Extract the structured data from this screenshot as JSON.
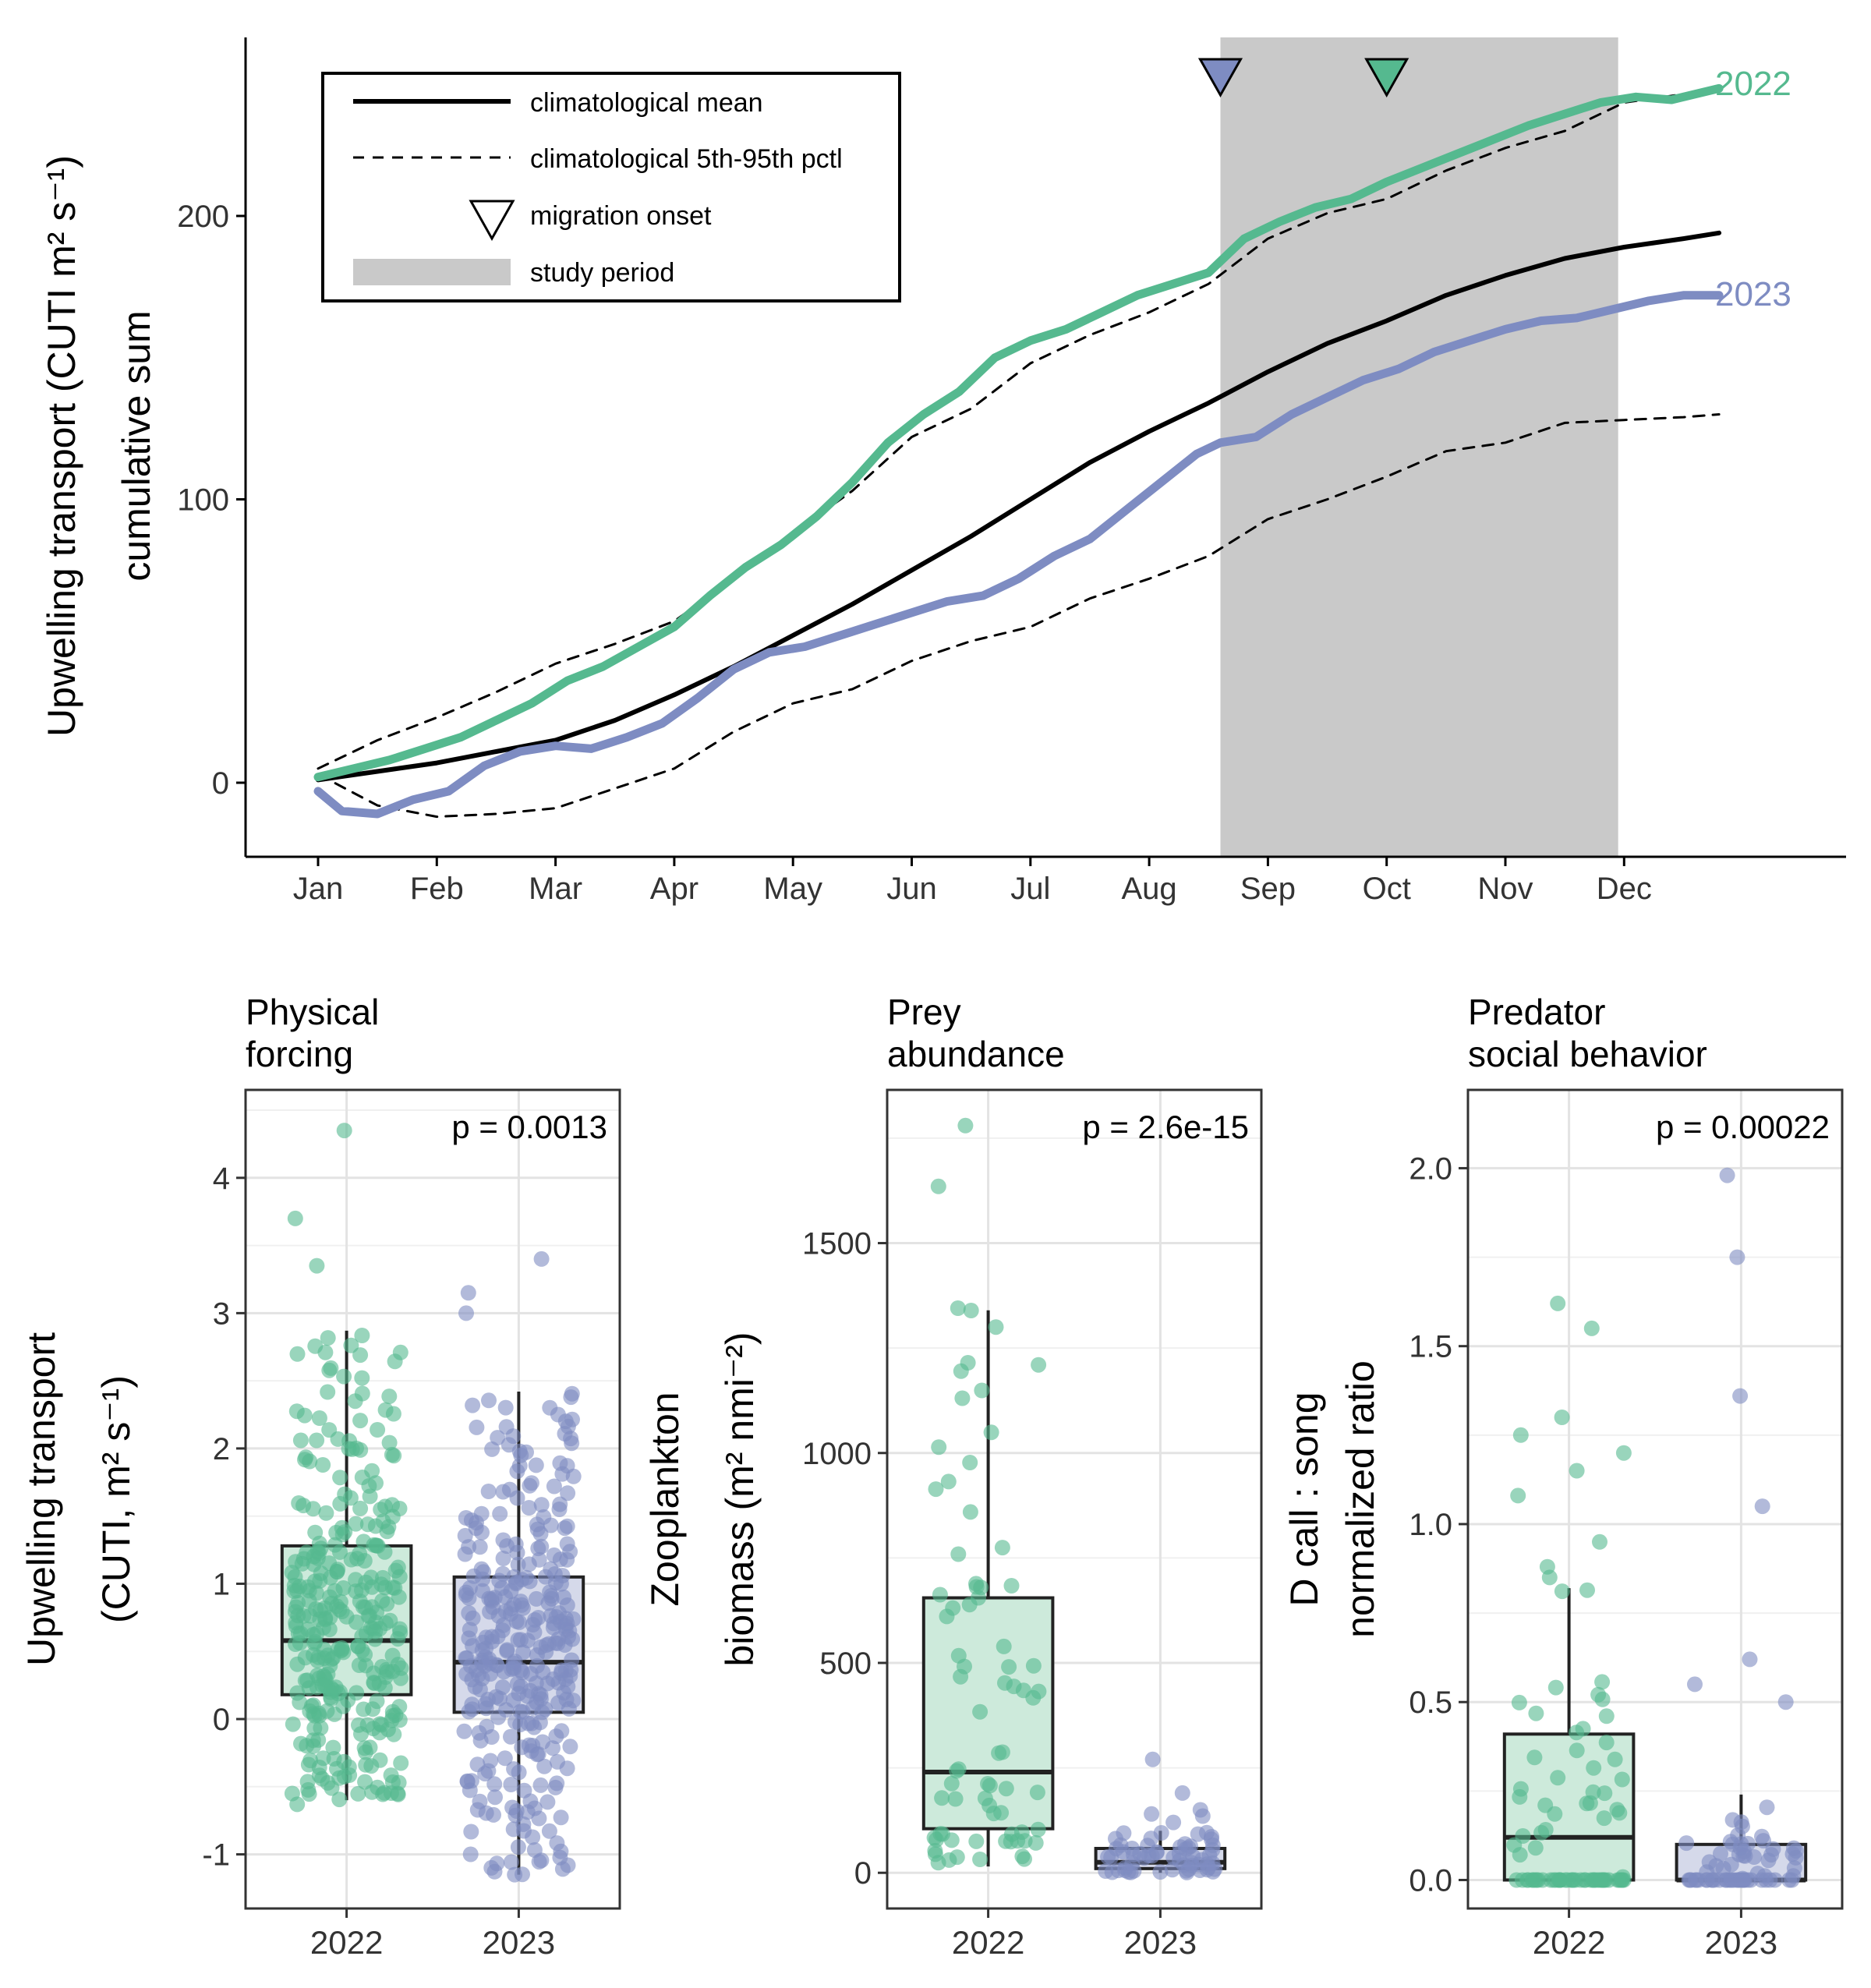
{
  "colors": {
    "y2022": "#55b98f",
    "y2023": "#7e8cc2",
    "mean": "#000000",
    "shade": "#c9c9c9",
    "fill2022": "#cdeadb",
    "fill2023": "#d5d9ea"
  },
  "top": {
    "ylabel1": "Upwelling transport (CUTI m² s⁻¹)",
    "ylabel2": "cumulative sum",
    "yticks": [
      0,
      100,
      200
    ],
    "months": [
      "Jan",
      "Feb",
      "Mar",
      "Apr",
      "May",
      "Jun",
      "Jul",
      "Aug",
      "Sep",
      "Oct",
      "Nov",
      "Dec"
    ],
    "legend": {
      "mean": "climatological mean",
      "pctl": "climatological 5th-95th pctl",
      "onset": "migration onset",
      "study": "study period"
    },
    "label2022": "2022",
    "label2023": "2023"
  },
  "chart_data": [
    {
      "type": "line",
      "x_unit": "month (1 = Jan 1, 13 = Jan 1 next year)",
      "ylim": [
        -25,
        262
      ],
      "study_period": [
        8.6,
        11.95
      ],
      "migration_onset": {
        "2022": 10.0,
        "2023": 8.6
      },
      "series": [
        {
          "name": "2022",
          "x": [
            1,
            1.3,
            1.6,
            1.9,
            2.2,
            2.5,
            2.8,
            3.1,
            3.4,
            3.7,
            4,
            4.3,
            4.6,
            4.9,
            5.2,
            5.5,
            5.8,
            6.1,
            6.4,
            6.7,
            7,
            7.3,
            7.6,
            7.9,
            8.2,
            8.5,
            8.8,
            9.1,
            9.4,
            9.7,
            10,
            10.3,
            10.6,
            10.9,
            11.2,
            11.5,
            11.8,
            12.1,
            12.4,
            12.8
          ],
          "y": [
            2,
            5,
            8,
            12,
            16,
            22,
            28,
            36,
            41,
            48,
            55,
            66,
            76,
            84,
            94,
            106,
            120,
            130,
            138,
            150,
            156,
            160,
            166,
            172,
            176,
            180,
            192,
            198,
            203,
            206,
            212,
            217,
            222,
            227,
            232,
            236,
            240,
            242,
            241,
            245
          ]
        },
        {
          "name": "2023",
          "x": [
            1,
            1.2,
            1.5,
            1.8,
            2.1,
            2.4,
            2.7,
            3.0,
            3.3,
            3.6,
            3.9,
            4.2,
            4.5,
            4.8,
            5.1,
            5.4,
            5.7,
            6.0,
            6.3,
            6.6,
            6.9,
            7.2,
            7.5,
            7.8,
            8.1,
            8.4,
            8.6,
            8.9,
            9.2,
            9.5,
            9.8,
            10.1,
            10.4,
            10.7,
            11,
            11.3,
            11.6,
            11.9,
            12.2,
            12.5,
            12.8
          ],
          "y": [
            -3,
            -10,
            -11,
            -6,
            -3,
            6,
            11,
            13,
            12,
            16,
            21,
            30,
            40,
            46,
            48,
            52,
            56,
            60,
            64,
            66,
            72,
            80,
            86,
            96,
            106,
            116,
            120,
            122,
            130,
            136,
            142,
            146,
            152,
            156,
            160,
            163,
            164,
            167,
            170,
            172,
            172
          ]
        },
        {
          "name": "climatological mean",
          "x": [
            1,
            1.5,
            2,
            2.5,
            3,
            3.5,
            4,
            4.5,
            5,
            5.5,
            6,
            6.5,
            7,
            7.5,
            8,
            8.5,
            9,
            9.5,
            10,
            10.5,
            11,
            11.5,
            12,
            12.5,
            12.8
          ],
          "y": [
            1,
            4,
            7,
            11,
            15,
            22,
            31,
            41,
            52,
            63,
            75,
            87,
            100,
            113,
            124,
            134,
            145,
            155,
            163,
            172,
            179,
            185,
            189,
            192,
            194
          ]
        },
        {
          "name": "climatological 95th pctl",
          "x": [
            1,
            1.5,
            2,
            2.5,
            3,
            3.5,
            4,
            4.5,
            5,
            5.5,
            6,
            6.5,
            7,
            7.5,
            8,
            8.5,
            9,
            9.5,
            10,
            10.5,
            11,
            11.5,
            12,
            12.5,
            12.8
          ],
          "y": [
            5,
            15,
            23,
            32,
            42,
            49,
            57,
            72,
            88,
            103,
            122,
            132,
            148,
            158,
            166,
            176,
            192,
            201,
            206,
            216,
            224,
            230,
            240,
            243,
            245
          ]
        },
        {
          "name": "climatological 5th pctl",
          "x": [
            1,
            1.5,
            2,
            2.5,
            3,
            3.5,
            4,
            4.5,
            5,
            5.5,
            6,
            6.5,
            7,
            7.5,
            8,
            8.5,
            9,
            9.5,
            10,
            10.5,
            11,
            11.5,
            12,
            12.5,
            12.8
          ],
          "y": [
            3,
            -8,
            -12,
            -11,
            -9,
            -2,
            5,
            18,
            28,
            33,
            43,
            50,
            55,
            65,
            72,
            80,
            93,
            100,
            108,
            117,
            120,
            127,
            128,
            129,
            130
          ]
        }
      ]
    },
    {
      "type": "box",
      "title": "Physical\nforcing",
      "ylabel": [
        "Upwelling transport",
        "(CUTI, m² s⁻¹)"
      ],
      "ylim": [
        -1.4,
        4.65
      ],
      "yticks": [
        -1,
        0,
        1,
        2,
        3,
        4
      ],
      "p_label": "p = 0.0013",
      "categories": [
        "2022",
        "2023"
      ],
      "boxes": [
        {
          "q1": 0.18,
          "median": 0.58,
          "q3": 1.28,
          "whisker_low": -0.6,
          "whisker_high": 2.87
        },
        {
          "q1": 0.05,
          "median": 0.42,
          "q3": 1.05,
          "whisker_low": -1.15,
          "whisker_high": 2.42
        }
      ],
      "n_points": [
        320,
        320
      ],
      "outliers": [
        [
          4.35,
          3.7,
          3.35,
          -0.63,
          -0.55
        ],
        [
          3.4,
          3.15,
          3.0,
          -1.1,
          -1.15
        ]
      ]
    },
    {
      "type": "box",
      "title": "Prey\nabundance",
      "ylabel": [
        "Zooplankton",
        "biomass (m² nmi⁻²)"
      ],
      "ylim": [
        -85,
        1865
      ],
      "yticks": [
        0,
        500,
        1000,
        1500
      ],
      "p_label": "p = 2.6e-15",
      "categories": [
        "2022",
        "2023"
      ],
      "boxes": [
        {
          "q1": 105,
          "median": 240,
          "q3": 655,
          "whisker_low": 15,
          "whisker_high": 1340
        },
        {
          "q1": 10,
          "median": 25,
          "q3": 58,
          "whisker_low": 0,
          "whisker_high": 100
        }
      ],
      "n_points": [
        70,
        60
      ],
      "outliers": [
        [
          1780,
          1635,
          1345,
          1300,
          1215,
          1210
        ],
        [
          270,
          190,
          150,
          140,
          135,
          120
        ]
      ]
    },
    {
      "type": "box",
      "title": "Predator\nsocial behavior",
      "ylabel": [
        "D call : song",
        "normalized ratio"
      ],
      "ylim": [
        -0.08,
        2.22
      ],
      "yticks": [
        0.0,
        0.5,
        1.0,
        1.5,
        2.0
      ],
      "ytick_labels": [
        "0.0",
        "0.5",
        "1.0",
        "1.5",
        "2.0"
      ],
      "p_label": "p = 0.00022",
      "categories": [
        "2022",
        "2023"
      ],
      "boxes": [
        {
          "q1": 0.0,
          "median": 0.12,
          "q3": 0.41,
          "whisker_low": 0.0,
          "whisker_high": 0.82
        },
        {
          "q1": 0.0,
          "median": 0.0,
          "q3": 0.1,
          "whisker_low": 0.0,
          "whisker_high": 0.24
        }
      ],
      "n_points": [
        80,
        70
      ],
      "outliers": [
        [
          1.62,
          1.55,
          1.3,
          1.25,
          1.2,
          1.15,
          1.08,
          0.95,
          0.88,
          0.85
        ],
        [
          1.98,
          1.75,
          1.36,
          1.05,
          0.62,
          0.55,
          0.5
        ]
      ]
    }
  ]
}
